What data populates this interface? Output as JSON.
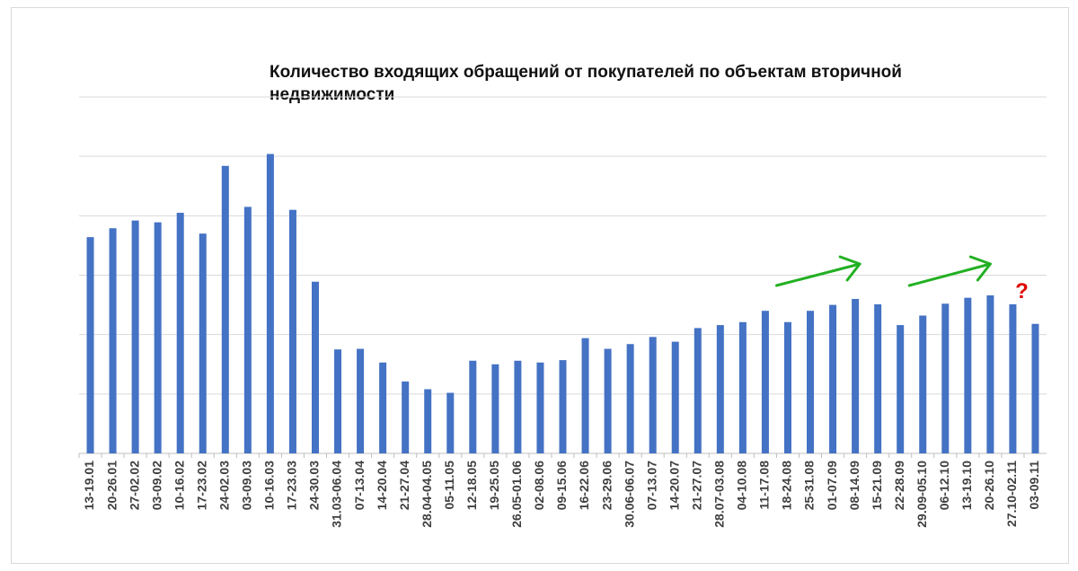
{
  "chart_data": {
    "type": "bar",
    "title": "Количество входящих обращений от покупателей по объектам вторичной недвижимости",
    "xlabel": "",
    "ylabel": "",
    "ylim": [
      0,
      6
    ],
    "grid": true,
    "legend": "none",
    "bar_color": "#4472c4",
    "categories": [
      "13-19.01",
      "20-26.01",
      "27-02.02",
      "03-09.02",
      "10-16.02",
      "17-23.02",
      "24-02.03",
      "03-09.03",
      "10-16.03",
      "17-23.03",
      "24-30.03",
      "31.03-06.04",
      "07-13.04",
      "14-20.04",
      "21-27.04",
      "28.04-04.05",
      "05-11.05",
      "12-18.05",
      "19-25.05",
      "26.05-01.06",
      "02-08.06",
      "09-15.06",
      "16-22.06",
      "23-29.06",
      "30.06-06.07",
      "07-13.07",
      "14-20.07",
      "21-27.07",
      "28.07-03.08",
      "04-10.08",
      "11-17.08",
      "18-24.08",
      "25-31.08",
      "01-07.09",
      "08-14.09",
      "15-21.09",
      "22-28.09",
      "29.09-05.10",
      "06-12.10",
      "13-19.10",
      "20-26.10",
      "27.10-02.11",
      "03-09.11"
    ],
    "values": [
      3.64,
      3.79,
      3.92,
      3.89,
      4.05,
      3.7,
      4.84,
      4.15,
      5.04,
      4.1,
      2.89,
      1.75,
      1.76,
      1.53,
      1.21,
      1.08,
      1.02,
      1.56,
      1.5,
      1.56,
      1.53,
      1.57,
      1.94,
      1.76,
      1.84,
      1.96,
      1.88,
      2.11,
      2.16,
      2.21,
      2.4,
      2.21,
      2.4,
      2.5,
      2.6,
      2.51,
      2.16,
      2.32,
      2.52,
      2.62,
      2.66,
      2.51,
      2.18
    ],
    "annotations": [
      {
        "type": "arrow",
        "color": "#22b022",
        "from_index": 30.5,
        "to_index": 34.2
      },
      {
        "type": "arrow",
        "color": "#22b022",
        "from_index": 36.4,
        "to_index": 40.0
      },
      {
        "type": "text",
        "text": "?",
        "color": "#e00000",
        "index": 41.4
      }
    ]
  }
}
